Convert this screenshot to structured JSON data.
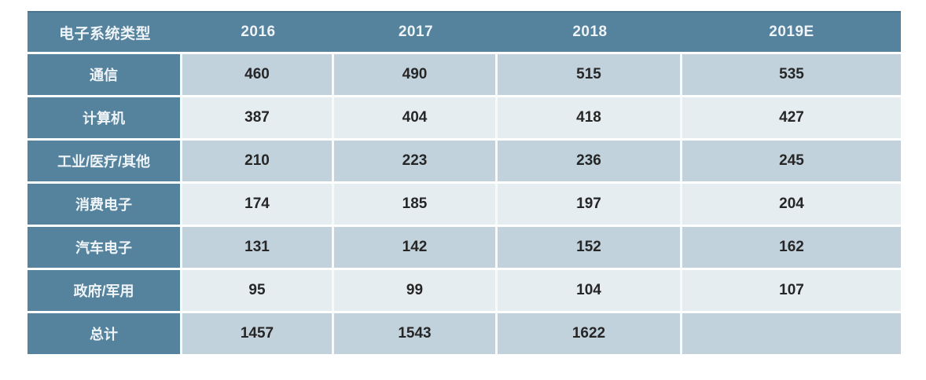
{
  "chart_data": {
    "type": "table",
    "title": "",
    "columns": [
      "电子系统类型",
      "2016",
      "2017",
      "2018",
      "2019E"
    ],
    "rows": [
      {
        "label": "通信",
        "values": [
          "460",
          "490",
          "515",
          "535"
        ]
      },
      {
        "label": "计算机",
        "values": [
          "387",
          "404",
          "418",
          "427"
        ]
      },
      {
        "label": "工业/医疗/其他",
        "values": [
          "210",
          "223",
          "236",
          "245"
        ]
      },
      {
        "label": "消费电子",
        "values": [
          "174",
          "185",
          "197",
          "204"
        ]
      },
      {
        "label": "汽车电子",
        "values": [
          "131",
          "142",
          "152",
          "162"
        ]
      },
      {
        "label": "政府/军用",
        "values": [
          "95",
          "99",
          "104",
          "107"
        ]
      },
      {
        "label": "总计",
        "values": [
          "1457",
          "1543",
          "1622",
          ""
        ]
      }
    ],
    "layout_hints": {
      "alternating_rows": true,
      "legend": "none",
      "grid": "white cell dividers",
      "last_cell_note": "总计 × 2019E value obscured by pixelated watermark"
    }
  },
  "colors": {
    "header_bg": "#55829c",
    "header_top_edge": "#4a7590",
    "header_text": "#eef4f7",
    "row_odd": "#c2d2dc",
    "row_even": "#e5edf1",
    "value_text": "#262626",
    "divider": "#f7fafb"
  },
  "watermark": {
    "present": true,
    "blocks": [
      "#dde5e9",
      "#f2f5f7",
      "#fdfefe",
      "#eef2f4",
      "#dce4e8",
      "#e7edf0",
      "#d2dce2",
      "#e2e9ed",
      "#d9e2e7",
      "#e8eef1",
      "#d6dfe5",
      "#eff3f5",
      "#e4eaee",
      "#cdd8de",
      "#e4eaee",
      "#f6f8f9",
      "#dee5ea",
      "#c6d2d9",
      "#d5dee3",
      "#cbd6dd",
      "#d8e0e6",
      "#cfd9e0",
      "#dce4e8",
      "#c8d4db",
      "#e1e8ec",
      "#d3dde2",
      "#bac7cf",
      "#d0dae0",
      "#e2e9ed",
      "#cbd6dc",
      "#b7c5cd",
      "#c5d1d8",
      "#bdcad2",
      "#cad5db",
      "#c0cdd4",
      "#ced9df",
      "#b9c6ce",
      "#d5dee3",
      "#c6d2d9"
    ]
  }
}
